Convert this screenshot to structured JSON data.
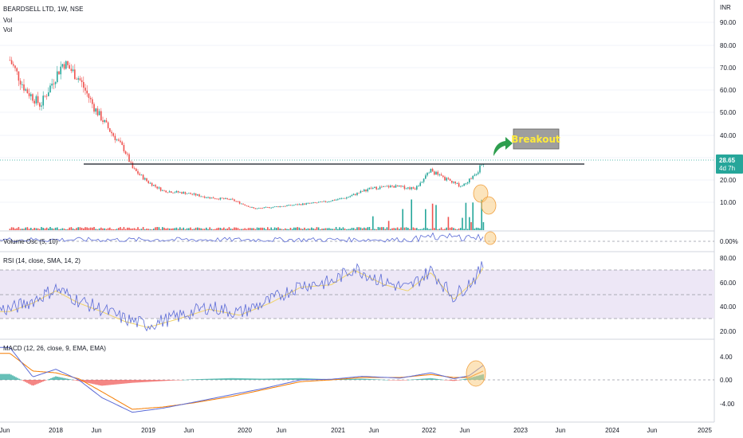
{
  "symbol_title": "BEARDSELL LTD, 1W, NSE",
  "vol_label_1": "Vol",
  "vol_label_2": "Vol",
  "currency": "INR",
  "colors": {
    "up": "#26a69a",
    "down": "#ef5350",
    "vol_up": "#26a69a",
    "vol_down": "#ef5350",
    "line_blue": "#5b6bd6",
    "rsi_ma": "#f0d36a",
    "macd_signal": "#f57c00",
    "rsi_band": "#ede7f6",
    "price_tag": "#26a69a",
    "breakout_box": "#9e9e9e",
    "breakout_arrow": "#2e9e4f",
    "highlight": "#f9c97a",
    "grid": "#f0f3fa",
    "panel_border": "#d1d4dc"
  },
  "price_tag": {
    "value": "28.65",
    "countdown": "4d 7h"
  },
  "annotation": {
    "text": "Breakout"
  },
  "chart_data": [
    {
      "name": "price",
      "type": "candlestick",
      "x_ticks": [
        "2018",
        "Jun",
        "2019",
        "Jun",
        "2020",
        "Jun",
        "2021",
        "Jun",
        "2022",
        "Jun",
        "2023",
        "Jun",
        "2024",
        "Jun",
        "2025"
      ],
      "y_ticks": [
        "90.00",
        "80.00",
        "70.00",
        "60.00",
        "50.00",
        "40.00",
        "30.00",
        "20.00",
        "10.00"
      ],
      "ylim": [
        0,
        95
      ],
      "resistance_level": 26,
      "last_close": 28.65,
      "close_path": [
        {
          "x": "2017-07",
          "y": 73
        },
        {
          "x": "2017-09",
          "y": 60
        },
        {
          "x": "2017-11",
          "y": 53
        },
        {
          "x": "2018-01",
          "y": 66
        },
        {
          "x": "2018-02",
          "y": 72
        },
        {
          "x": "2018-04",
          "y": 65
        },
        {
          "x": "2018-06",
          "y": 52
        },
        {
          "x": "2018-08",
          "y": 42
        },
        {
          "x": "2018-10",
          "y": 33
        },
        {
          "x": "2018-11",
          "y": 25
        },
        {
          "x": "2019-01",
          "y": 19
        },
        {
          "x": "2019-03",
          "y": 15
        },
        {
          "x": "2019-06",
          "y": 14
        },
        {
          "x": "2019-09",
          "y": 12
        },
        {
          "x": "2019-12",
          "y": 11
        },
        {
          "x": "2020-03",
          "y": 7
        },
        {
          "x": "2020-06",
          "y": 8
        },
        {
          "x": "2020-09",
          "y": 9
        },
        {
          "x": "2020-12",
          "y": 10
        },
        {
          "x": "2021-03",
          "y": 12
        },
        {
          "x": "2021-06",
          "y": 16
        },
        {
          "x": "2021-09",
          "y": 17
        },
        {
          "x": "2021-12",
          "y": 16
        },
        {
          "x": "2022-02",
          "y": 24
        },
        {
          "x": "2022-04",
          "y": 20
        },
        {
          "x": "2022-06",
          "y": 17
        },
        {
          "x": "2022-07",
          "y": 20
        },
        {
          "x": "2022-08",
          "y": 23
        },
        {
          "x": "2022-09",
          "y": 28.65
        }
      ]
    },
    {
      "name": "volume_osc",
      "type": "line",
      "title": "Volume Osc (5, 10)",
      "y_ticks": [
        "0.00%"
      ],
      "baseline": 0
    },
    {
      "name": "rsi",
      "type": "line",
      "title": "RSI (14, close, SMA, 14, 2)",
      "y_ticks": [
        "80.00",
        "60.00",
        "40.00",
        "20.00"
      ],
      "bands": [
        30,
        50,
        70
      ],
      "ylim": [
        15,
        85
      ],
      "path": [
        {
          "x": "2017-07",
          "y": 38
        },
        {
          "x": "2017-10",
          "y": 45
        },
        {
          "x": "2018-01",
          "y": 55
        },
        {
          "x": "2018-04",
          "y": 45
        },
        {
          "x": "2018-07",
          "y": 38
        },
        {
          "x": "2018-10",
          "y": 30
        },
        {
          "x": "2019-01",
          "y": 25
        },
        {
          "x": "2019-05",
          "y": 32
        },
        {
          "x": "2019-09",
          "y": 40
        },
        {
          "x": "2020-01",
          "y": 35
        },
        {
          "x": "2020-05",
          "y": 45
        },
        {
          "x": "2020-09",
          "y": 58
        },
        {
          "x": "2021-01",
          "y": 60
        },
        {
          "x": "2021-04",
          "y": 72
        },
        {
          "x": "2021-08",
          "y": 60
        },
        {
          "x": "2021-11",
          "y": 55
        },
        {
          "x": "2022-02",
          "y": 70
        },
        {
          "x": "2022-05",
          "y": 48
        },
        {
          "x": "2022-08",
          "y": 65
        },
        {
          "x": "2022-09",
          "y": 76
        }
      ]
    },
    {
      "name": "macd",
      "type": "line",
      "title": "MACD (12, 26, close, 9, EMA, EMA)",
      "y_ticks": [
        "4.00",
        "0.00",
        "-4.00"
      ],
      "ylim": [
        -6.5,
        6
      ],
      "macd": [
        {
          "x": "2017-07",
          "y": 5.5
        },
        {
          "x": "2017-10",
          "y": 0.5
        },
        {
          "x": "2018-01",
          "y": 1.8
        },
        {
          "x": "2018-04",
          "y": 0
        },
        {
          "x": "2018-07",
          "y": -3
        },
        {
          "x": "2018-11",
          "y": -5.5
        },
        {
          "x": "2019-03",
          "y": -4.8
        },
        {
          "x": "2019-07",
          "y": -3.8
        },
        {
          "x": "2019-12",
          "y": -2.5
        },
        {
          "x": "2020-04",
          "y": -1.5
        },
        {
          "x": "2020-09",
          "y": 0
        },
        {
          "x": "2021-01",
          "y": 0.1
        },
        {
          "x": "2021-05",
          "y": 0.6
        },
        {
          "x": "2021-10",
          "y": 0.3
        },
        {
          "x": "2022-02",
          "y": 1.2
        },
        {
          "x": "2022-05",
          "y": 0.2
        },
        {
          "x": "2022-07",
          "y": 0.7
        },
        {
          "x": "2022-09",
          "y": 2.6
        }
      ],
      "signal": [
        {
          "x": "2017-07",
          "y": 4.5
        },
        {
          "x": "2017-10",
          "y": 1.5
        },
        {
          "x": "2018-01",
          "y": 1.2
        },
        {
          "x": "2018-04",
          "y": 0.2
        },
        {
          "x": "2018-07",
          "y": -2
        },
        {
          "x": "2018-11",
          "y": -5
        },
        {
          "x": "2019-03",
          "y": -4.6
        },
        {
          "x": "2019-07",
          "y": -3.9
        },
        {
          "x": "2019-12",
          "y": -2.8
        },
        {
          "x": "2020-04",
          "y": -1.7
        },
        {
          "x": "2020-09",
          "y": -0.3
        },
        {
          "x": "2021-01",
          "y": 0
        },
        {
          "x": "2021-05",
          "y": 0.4
        },
        {
          "x": "2021-10",
          "y": 0.4
        },
        {
          "x": "2022-02",
          "y": 0.9
        },
        {
          "x": "2022-05",
          "y": 0.4
        },
        {
          "x": "2022-07",
          "y": 0.4
        },
        {
          "x": "2022-09",
          "y": 1.6
        }
      ]
    }
  ]
}
